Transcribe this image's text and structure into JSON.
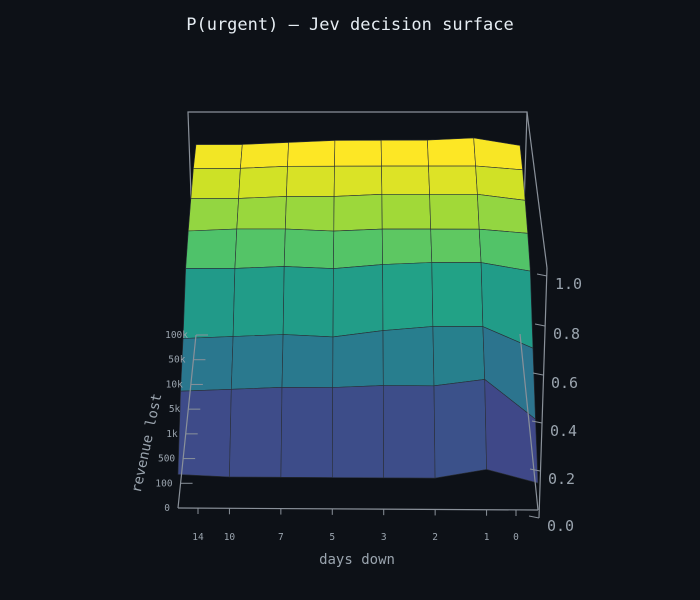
{
  "chart_data": {
    "type": "surface",
    "title": "P(urgent) — Jev decision surface",
    "xlabel": "days down",
    "ylabel": "revenue lost",
    "zlabel": "",
    "x_ticks": [
      "14",
      "10",
      "7",
      "5",
      "3",
      "2",
      "1",
      "0"
    ],
    "y_ticks": [
      "0",
      "100",
      "500",
      "1k",
      "5k",
      "10k",
      "50k",
      "100k"
    ],
    "z_ticks": [
      "0.0",
      "0.2",
      "0.4",
      "0.6",
      "0.8",
      "1.0"
    ],
    "zlim": [
      0,
      1
    ],
    "colormap": "viridis",
    "grid": false,
    "background": "#0d1117",
    "z_values": [
      [
        0.15,
        0.14,
        0.14,
        0.14,
        0.14,
        0.14,
        0.18,
        0.12
      ],
      [
        0.42,
        0.43,
        0.44,
        0.44,
        0.45,
        0.45,
        0.48,
        0.3
      ],
      [
        0.56,
        0.57,
        0.58,
        0.57,
        0.6,
        0.62,
        0.62,
        0.52
      ],
      [
        0.79,
        0.79,
        0.8,
        0.79,
        0.81,
        0.82,
        0.82,
        0.78
      ],
      [
        0.87,
        0.88,
        0.88,
        0.87,
        0.88,
        0.88,
        0.88,
        0.86
      ],
      [
        0.93,
        0.93,
        0.94,
        0.94,
        0.95,
        0.95,
        0.95,
        0.92
      ],
      [
        0.98,
        0.98,
        0.99,
        0.99,
        0.99,
        0.99,
        0.99,
        0.97
      ],
      [
        1.0,
        1.0,
        1.01,
        1.02,
        1.02,
        1.02,
        1.03,
        0.99
      ]
    ]
  }
}
